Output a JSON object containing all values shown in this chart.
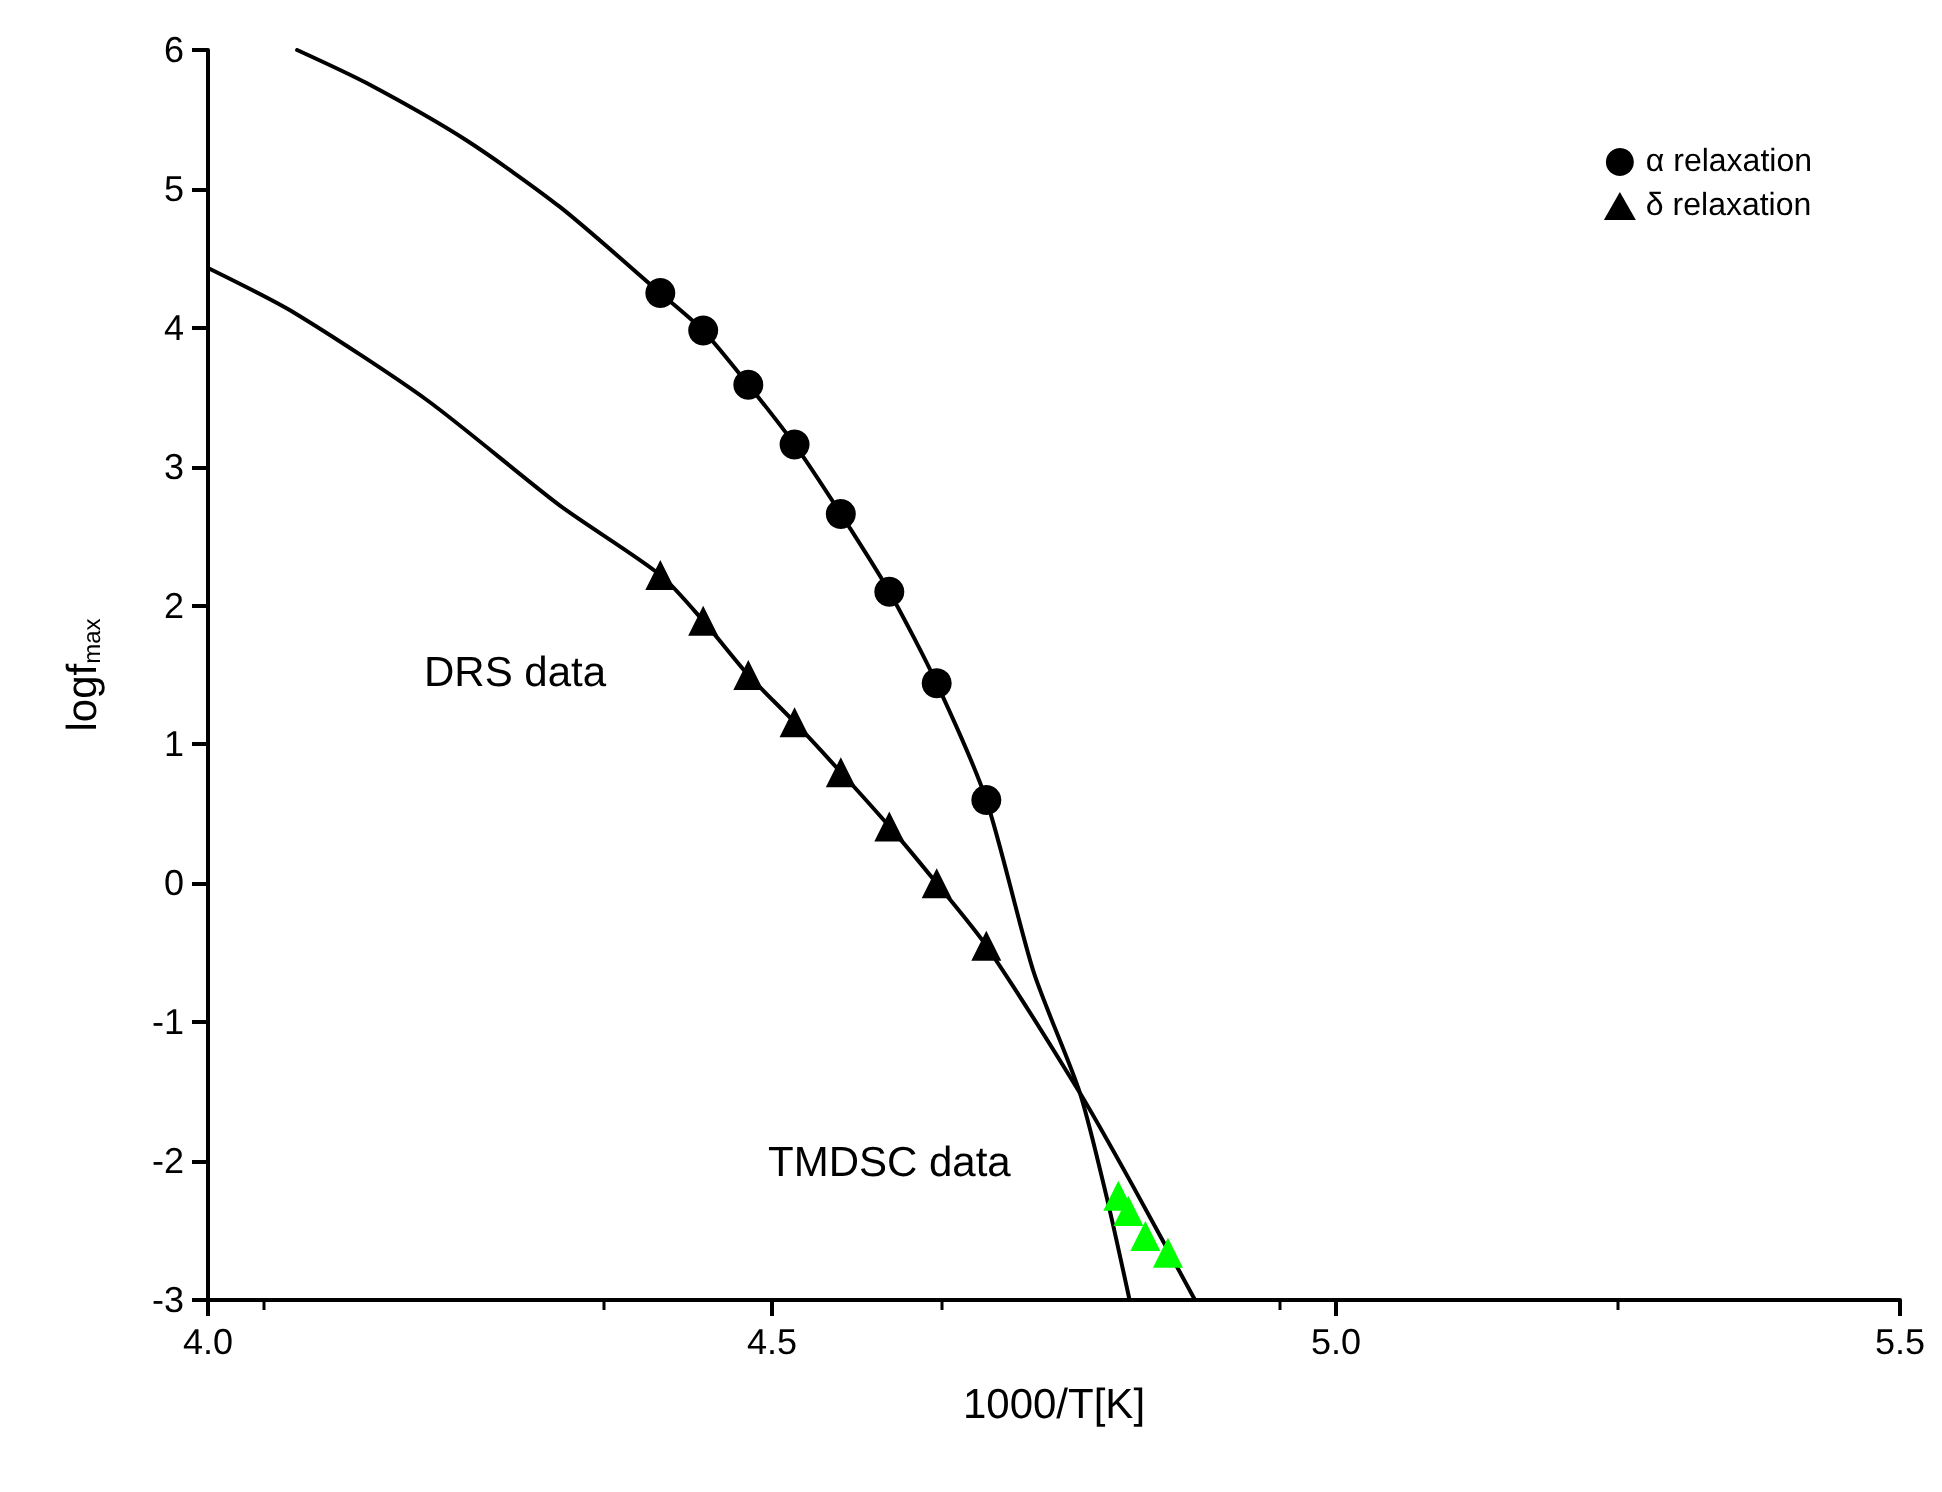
{
  "chart_data": {
    "type": "scatter",
    "xlabel": "1000/T[K]",
    "ylabel": "logf$_{max}$",
    "xlim": [
      4.0,
      5.5
    ],
    "ylim": [
      -3,
      6
    ],
    "xticks": [
      {
        "value": 4.0,
        "label": "4.0"
      },
      {
        "value": 4.5,
        "label": "4.5"
      },
      {
        "value": 5.0,
        "label": "5.0"
      },
      {
        "value": 5.5,
        "label": "5.5"
      }
    ],
    "yticks": [
      -3,
      -2,
      -1,
      0,
      1,
      2,
      3,
      4,
      5,
      6
    ],
    "grid": false,
    "legend": "top right",
    "annotations": [
      "DRS data",
      "TMDSC data"
    ],
    "series": [
      {
        "type": "line",
        "marker": "none",
        "color": "#000000",
        "x": [
          4.079,
          4.141,
          4.229,
          4.312,
          4.401,
          4.439,
          4.479,
          4.52,
          4.561,
          4.604,
          4.646,
          4.69,
          4.732,
          4.773,
          4.797,
          4.817
        ],
        "values": [
          6,
          5.76,
          5.35,
          4.87,
          4.25,
          3.98,
          3.59,
          3.16,
          2.66,
          2.1,
          1.44,
          0.6,
          -0.64,
          -1.51,
          -2.27,
          -3
        ]
      },
      {
        "type": "line",
        "marker": "none",
        "color": "#000000",
        "x": [
          4.0,
          4.076,
          4.194,
          4.312,
          4.401,
          4.439,
          4.479,
          4.52,
          4.561,
          4.604,
          4.646,
          4.69,
          4.773,
          4.82,
          4.875
        ],
        "values": [
          4.43,
          4.11,
          3.48,
          2.72,
          2.22,
          1.89,
          1.5,
          1.16,
          0.8,
          0.41,
          0,
          -0.45,
          -1.51,
          -2.18,
          -3
        ]
      },
      {
        "name": "α relaxation",
        "marker": "circle",
        "color": "#000000",
        "x": [
          4.401,
          4.439,
          4.479,
          4.52,
          4.561,
          4.604,
          4.646,
          4.69
        ],
        "values": [
          4.25,
          3.98,
          3.59,
          3.16,
          2.66,
          2.1,
          1.44,
          0.6
        ]
      },
      {
        "name": "δ relaxation",
        "marker": "triangle",
        "color": "#000000",
        "x": [
          4.401,
          4.439,
          4.479,
          4.52,
          4.561,
          4.604,
          4.646,
          4.69
        ],
        "values": [
          2.22,
          1.89,
          1.5,
          1.16,
          0.8,
          0.41,
          0,
          -0.45
        ]
      },
      {
        "marker": "triangle",
        "color": "#00ff00",
        "x": [
          4.807,
          4.816,
          4.831,
          4.851
        ],
        "values": [
          -2.25,
          -2.36,
          -2.54,
          -2.66
        ]
      }
    ]
  }
}
